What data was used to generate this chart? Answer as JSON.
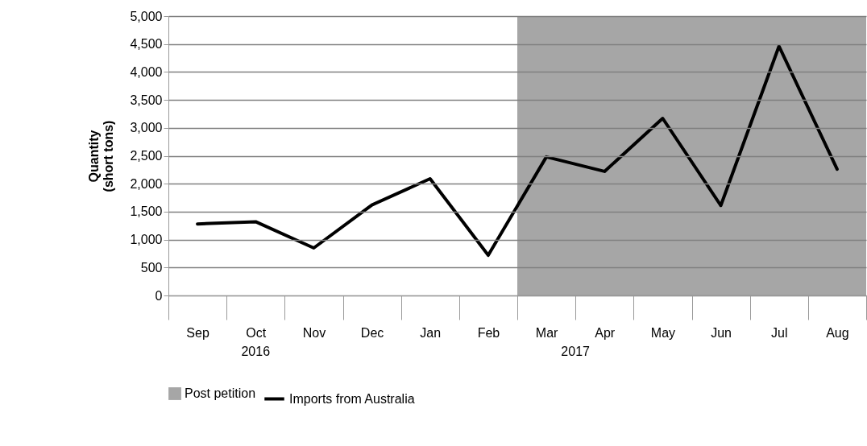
{
  "chart_data": {
    "type": "line",
    "ylabel": "Quantity\n(short tons)",
    "categories": [
      "Sep",
      "Oct",
      "Nov",
      "Dec",
      "Jan",
      "Feb",
      "Mar",
      "Apr",
      "May",
      "Jun",
      "Jul",
      "Aug"
    ],
    "series": [
      {
        "name": "Imports from Australia",
        "color": "#000000",
        "values": [
          1280,
          1320,
          850,
          1620,
          2090,
          720,
          2480,
          2220,
          3170,
          1610,
          4460,
          2260
        ]
      }
    ],
    "ylim": [
      0,
      5000
    ],
    "yticks": [
      0,
      500,
      {
        "value": 1000,
        "label": "1,000"
      },
      {
        "value": 1500,
        "label": "1,500"
      },
      {
        "value": 2000,
        "label": "2,000"
      },
      {
        "value": 2500,
        "label": "2,500"
      },
      {
        "value": 3000,
        "label": "3,000"
      },
      {
        "value": 3500,
        "label": "3,500"
      },
      {
        "value": 4000,
        "label": "4,000"
      },
      {
        "value": 4500,
        "label": "4,500"
      },
      {
        "value": 5000,
        "label": "5,000"
      }
    ],
    "bands": [
      {
        "axis": "x",
        "from": "Mar",
        "to": "Aug",
        "label": "Post petition",
        "color": "#a6a6a6"
      }
    ],
    "annotations": [
      "2016",
      "2017"
    ],
    "grid": "y",
    "legend": "bottom",
    "line_style": "solid",
    "marker": "none"
  }
}
